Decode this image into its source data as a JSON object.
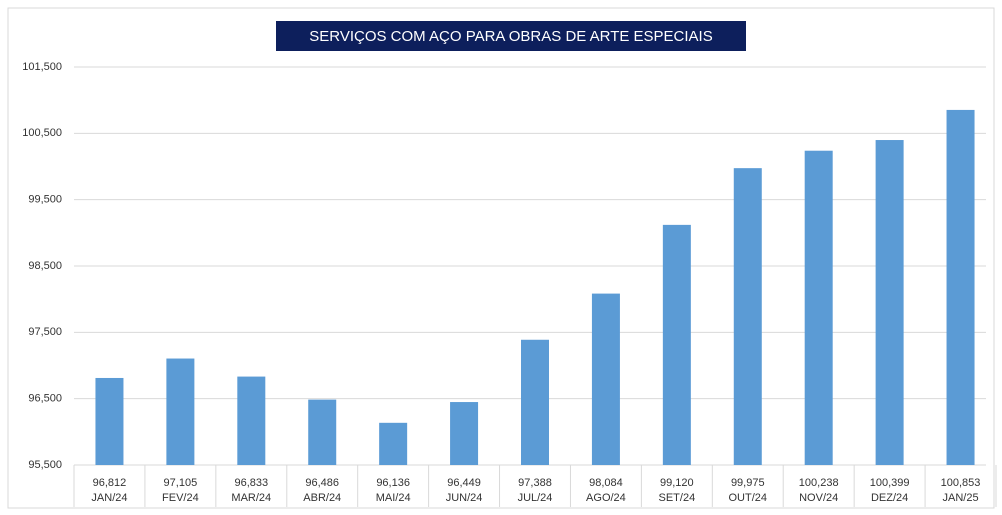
{
  "chart_data": {
    "type": "bar",
    "title": "SERVIÇOS COM AÇO PARA OBRAS DE ARTE ESPECIAIS",
    "categories": [
      "JAN/24",
      "FEV/24",
      "MAR/24",
      "ABR/24",
      "MAI/24",
      "JUN/24",
      "JUL/24",
      "AGO/24",
      "SET/24",
      "OUT/24",
      "NOV/24",
      "DEZ/24",
      "JAN/25"
    ],
    "values": [
      96812,
      97105,
      96833,
      96486,
      96136,
      96449,
      97388,
      98084,
      99120,
      99975,
      100238,
      100399,
      100853
    ],
    "value_labels": [
      "96,812",
      "97,105",
      "96,833",
      "96,486",
      "96,136",
      "96,449",
      "97,388",
      "98,084",
      "99,120",
      "99,975",
      "100,238",
      "100,399",
      "100,853"
    ],
    "color": "#5b9bd5",
    "ylim": [
      95500,
      101500
    ],
    "yticks": [
      {
        "value": 95500,
        "label": "95,500"
      },
      {
        "value": 96500,
        "label": "96,500"
      },
      {
        "value": 97500,
        "label": "97,500"
      },
      {
        "value": 98500,
        "label": "98,500"
      },
      {
        "value": 99500,
        "label": "99,500"
      },
      {
        "value": 100500,
        "label": "100,500"
      },
      {
        "value": 101500,
        "label": "101,500"
      }
    ],
    "grid": true
  }
}
